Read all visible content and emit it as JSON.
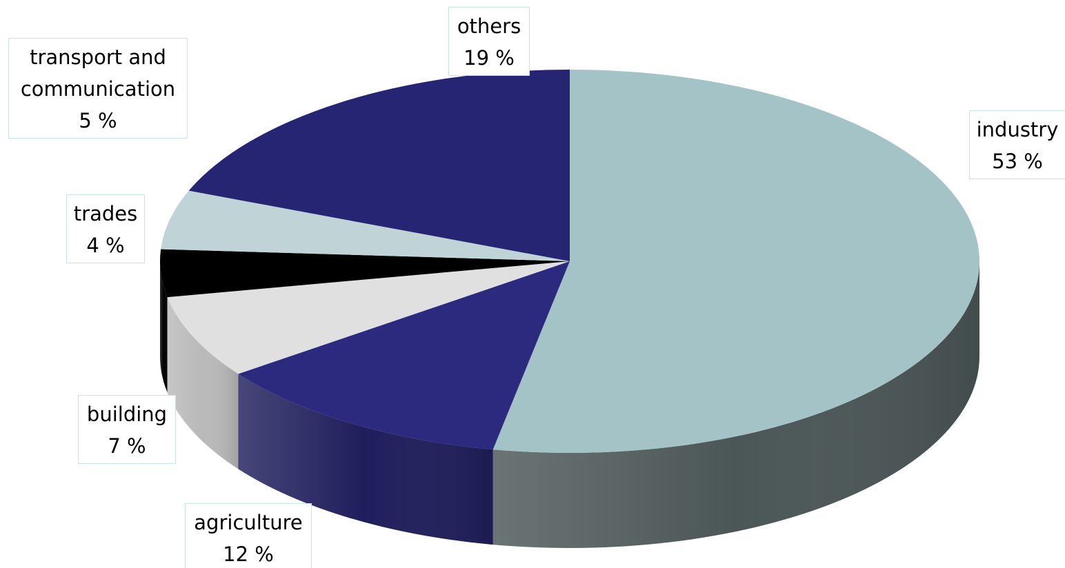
{
  "chart_data": {
    "type": "pie",
    "style": "3d",
    "title": "",
    "legend": "none",
    "slices": [
      {
        "label": "industry",
        "value": 53,
        "pct_text": "53 %",
        "color": "#a4c3c6",
        "side_color": "#4b5657"
      },
      {
        "label": "agriculture",
        "value": 12,
        "pct_text": "12 %",
        "color": "#2b2a7f",
        "side_color": "#1f1e5c"
      },
      {
        "label": "building",
        "value": 7,
        "pct_text": "7 %",
        "color": "#e0e0e0",
        "side_color": "#b9b9b9"
      },
      {
        "label": "trades",
        "value": 4,
        "pct_text": "4 %",
        "color": "#000000",
        "side_color": "#000000"
      },
      {
        "label": "transport and communication",
        "label_lines": [
          "transport and",
          "communication"
        ],
        "value": 5,
        "pct_text": "5 %",
        "color": "#c0d3d7",
        "side_color": "#93a3a6"
      },
      {
        "label": "others",
        "value": 19,
        "pct_text": "19 %",
        "color": "#262573",
        "side_color": "#1b1a55"
      }
    ]
  }
}
